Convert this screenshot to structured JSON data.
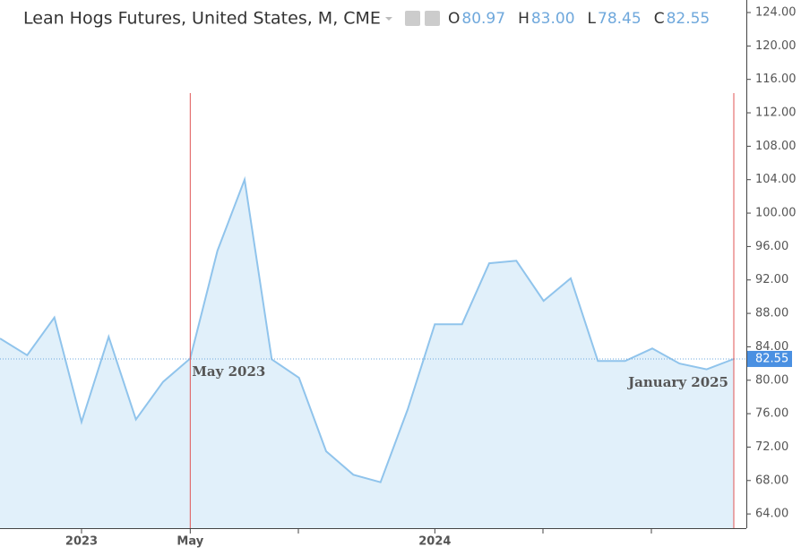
{
  "chart_data": {
    "type": "area",
    "title": "Lean Hogs Futures, United States, M, CME",
    "ohlc": [
      [
        "O",
        "80.97"
      ],
      [
        "H",
        "83.00"
      ],
      [
        "L",
        "78.45"
      ],
      [
        "C",
        "82.55"
      ]
    ],
    "categories": [
      null,
      null,
      null,
      "2023",
      null,
      null,
      null,
      "May",
      null,
      null,
      null,
      null,
      null,
      null,
      null,
      null,
      "2024",
      null,
      null,
      null,
      null,
      null,
      null,
      null,
      null,
      null,
      null,
      null
    ],
    "series": [
      {
        "name": "Lean Hogs",
        "color": "#90c4ec",
        "fill": "#e1f0fa",
        "values": [
          85,
          83,
          87.5,
          75,
          85.2,
          75.3,
          79.8,
          82.6,
          95.5,
          104,
          82.5,
          80.3,
          71.5,
          68.7,
          67.8,
          76.5,
          86.7,
          86.7,
          94,
          94.3,
          89.5,
          92.2,
          82.3,
          82.3,
          83.8,
          82,
          81.3,
          82.55
        ]
      }
    ],
    "annotations": [
      "May 2023",
      "January 2025"
    ],
    "ylim": [
      62.3,
      125.5
    ],
    "yticks": [
      {
        "value": 64,
        "label": "64.00"
      },
      {
        "value": 68,
        "label": "68.00"
      },
      {
        "value": 72,
        "label": "72.00"
      },
      {
        "value": 76,
        "label": "76.00"
      },
      {
        "value": 80,
        "label": "80.00"
      },
      {
        "value": 84,
        "label": "84.00"
      },
      {
        "value": 88,
        "label": "88.00"
      },
      {
        "value": 92,
        "label": "92.00"
      },
      {
        "value": 96,
        "label": "96.00"
      },
      {
        "value": 100,
        "label": "100.00"
      },
      {
        "value": 104,
        "label": "104.00"
      },
      {
        "value": 108,
        "label": "108.00"
      },
      {
        "value": 112,
        "label": "112.00"
      },
      {
        "value": 116,
        "label": "116.00"
      },
      {
        "value": 120,
        "label": "120.00"
      },
      {
        "value": 124,
        "label": "124.00"
      }
    ]
  }
}
